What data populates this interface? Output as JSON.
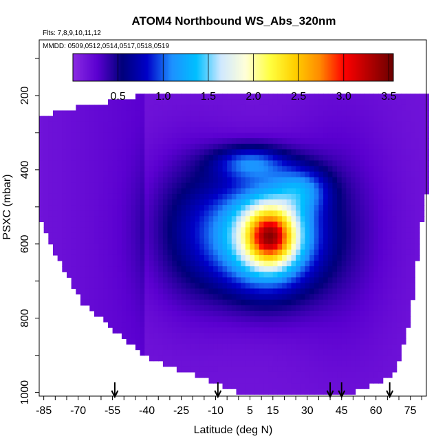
{
  "chart_data": {
    "type": "heatmap",
    "title": "ATOM4 Northbound WS_Abs_320nm",
    "subtitle": "Flts: 7,8,9,10,11,12",
    "annotation": "MMDD: 0509,0512,0514,0517,0518,0519",
    "xlabel": "Latitude (deg N)",
    "ylabel": "PSXC (mbar)",
    "xlim": [
      -87,
      82
    ],
    "ylim": [
      1010,
      50
    ],
    "x_ticks": [
      "-85",
      "-70",
      "-55",
      "-40",
      "-25",
      "-10",
      "5",
      "15",
      "30",
      "45",
      "60",
      "75"
    ],
    "y_ticks": [
      "200",
      "400",
      "600",
      "800",
      "1000"
    ],
    "colorbar": {
      "range": [
        0,
        3.55
      ],
      "ticks": [
        "0.5",
        "1.0",
        "1.5",
        "2.0",
        "2.5",
        "3.0",
        "3.5"
      ],
      "colors": [
        "#8a2be2",
        "#5a00d0",
        "#00007a",
        "#0000c8",
        "#1e90ff",
        "#00bfff",
        "#cfe8ff",
        "#ffffd8",
        "#ffff40",
        "#ffd000",
        "#ff8c00",
        "#ff0000",
        "#b40000",
        "#6a0000"
      ]
    },
    "flight_markers_latitude": [
      -54,
      -9,
      40,
      45,
      66
    ],
    "grid": false,
    "legend": "colorbar-top-inside"
  }
}
